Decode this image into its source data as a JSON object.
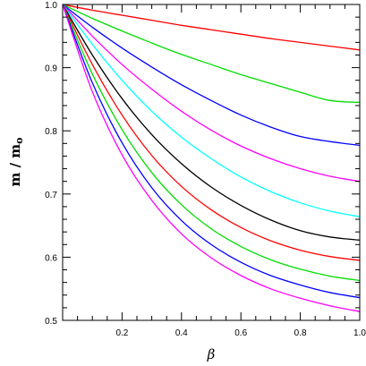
{
  "chart_data": {
    "type": "line",
    "xlabel": "β",
    "ylabel": "m / m",
    "ylabel_subscript": "o",
    "xlim": [
      0,
      1
    ],
    "ylim": [
      0.5,
      1.0
    ],
    "x_ticks": [
      0.2,
      0.4,
      0.6,
      0.8,
      1.0
    ],
    "x_tick_labels": [
      "0.2",
      "0.4",
      "0.6",
      "0.8",
      "1.0"
    ],
    "y_ticks": [
      0.5,
      0.6,
      0.7,
      0.8,
      0.9,
      1.0
    ],
    "y_tick_labels": [
      "0.5",
      "0.6",
      "0.7",
      "0.8",
      "0.9",
      "1.0"
    ],
    "grid": false,
    "x": [
      0,
      0.1,
      0.2,
      0.3,
      0.4,
      0.5,
      0.6,
      0.7,
      0.8,
      0.9,
      1.0
    ],
    "series": [
      {
        "color": "#ff0000",
        "values": [
          1.0,
          0.991,
          0.983,
          0.975,
          0.967,
          0.96,
          0.953,
          0.946,
          0.94,
          0.934,
          0.928
        ]
      },
      {
        "color": "#00dd00",
        "values": [
          1.0,
          0.978,
          0.958,
          0.939,
          0.921,
          0.905,
          0.889,
          0.875,
          0.861,
          0.848,
          0.845
        ]
      },
      {
        "color": "#0000ff",
        "values": [
          1.0,
          0.964,
          0.931,
          0.901,
          0.873,
          0.848,
          0.825,
          0.806,
          0.791,
          0.783,
          0.777
        ]
      },
      {
        "color": "#ff00ff",
        "values": [
          1.0,
          0.95,
          0.905,
          0.866,
          0.831,
          0.801,
          0.776,
          0.756,
          0.74,
          0.728,
          0.72
        ]
      },
      {
        "color": "#00ffff",
        "values": [
          1.0,
          0.937,
          0.88,
          0.831,
          0.79,
          0.756,
          0.727,
          0.704,
          0.686,
          0.673,
          0.664
        ]
      },
      {
        "color": "#000000",
        "values": [
          1.0,
          0.92,
          0.851,
          0.794,
          0.748,
          0.711,
          0.682,
          0.659,
          0.642,
          0.632,
          0.627
        ]
      },
      {
        "color": "#ff0000",
        "values": [
          1.0,
          0.905,
          0.825,
          0.761,
          0.712,
          0.675,
          0.647,
          0.626,
          0.611,
          0.601,
          0.595
        ]
      },
      {
        "color": "#00dd00",
        "values": [
          1.0,
          0.89,
          0.802,
          0.734,
          0.683,
          0.645,
          0.617,
          0.596,
          0.581,
          0.57,
          0.563
        ]
      },
      {
        "color": "#0000ff",
        "values": [
          1.0,
          0.876,
          0.781,
          0.71,
          0.658,
          0.62,
          0.592,
          0.571,
          0.556,
          0.544,
          0.536
        ]
      },
      {
        "color": "#ff00ff",
        "values": [
          1.0,
          0.862,
          0.762,
          0.69,
          0.637,
          0.599,
          0.571,
          0.55,
          0.535,
          0.523,
          0.514
        ]
      }
    ]
  }
}
